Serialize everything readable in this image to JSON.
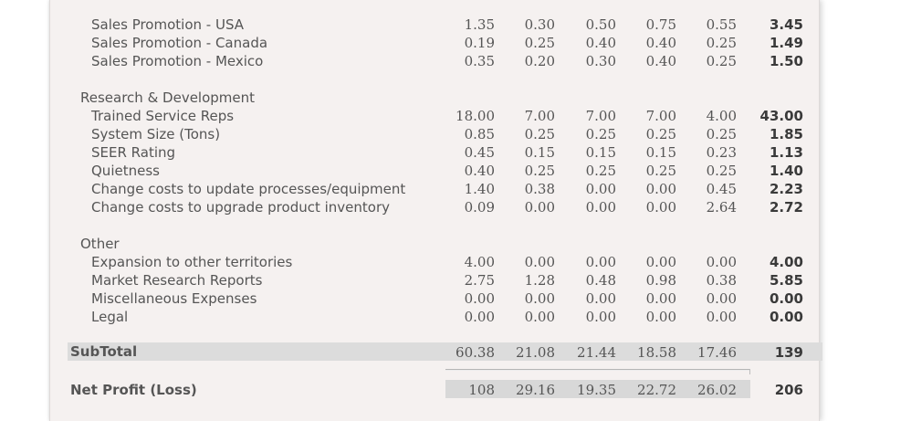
{
  "rows": [
    {
      "label": "Sales Promotion - USA",
      "v": [
        "1.35",
        "0.30",
        "0.50",
        "0.75",
        "0.55"
      ],
      "total": "3.45"
    },
    {
      "label": "Sales Promotion - Canada",
      "v": [
        "0.19",
        "0.25",
        "0.40",
        "0.40",
        "0.25"
      ],
      "total": "1.49"
    },
    {
      "label": "Sales Promotion - Mexico",
      "v": [
        "0.35",
        "0.20",
        "0.30",
        "0.40",
        "0.25"
      ],
      "total": "1.50"
    }
  ],
  "sections": {
    "rd": {
      "title": "Research & Development",
      "rows": [
        {
          "label": "Trained Service Reps",
          "v": [
            "18.00",
            "7.00",
            "7.00",
            "7.00",
            "4.00"
          ],
          "total": "43.00"
        },
        {
          "label": "System Size (Tons)",
          "v": [
            "0.85",
            "0.25",
            "0.25",
            "0.25",
            "0.25"
          ],
          "total": "1.85"
        },
        {
          "label": "SEER Rating",
          "v": [
            "0.45",
            "0.15",
            "0.15",
            "0.15",
            "0.23"
          ],
          "total": "1.13"
        },
        {
          "label": "Quietness",
          "v": [
            "0.40",
            "0.25",
            "0.25",
            "0.25",
            "0.25"
          ],
          "total": "1.40"
        },
        {
          "label": "Change costs to update processes/equipment",
          "v": [
            "1.40",
            "0.38",
            "0.00",
            "0.00",
            "0.45"
          ],
          "total": "2.23"
        },
        {
          "label": "Change costs to upgrade product inventory",
          "v": [
            "0.09",
            "0.00",
            "0.00",
            "0.00",
            "2.64"
          ],
          "total": "2.72"
        }
      ]
    },
    "other": {
      "title": "Other",
      "rows": [
        {
          "label": "Expansion to other territories",
          "v": [
            "4.00",
            "0.00",
            "0.00",
            "0.00",
            "0.00"
          ],
          "total": "4.00"
        },
        {
          "label": "Market Research Reports",
          "v": [
            "2.75",
            "1.28",
            "0.48",
            "0.98",
            "0.38"
          ],
          "total": "5.85"
        },
        {
          "label": "Miscellaneous Expenses",
          "v": [
            "0.00",
            "0.00",
            "0.00",
            "0.00",
            "0.00"
          ],
          "total": "0.00"
        },
        {
          "label": "Legal",
          "v": [
            "0.00",
            "0.00",
            "0.00",
            "0.00",
            "0.00"
          ],
          "total": "0.00"
        }
      ]
    }
  },
  "subtotal": {
    "label": "SubTotal",
    "v": [
      "60.38",
      "21.08",
      "21.44",
      "18.58",
      "17.46"
    ],
    "total": "139"
  },
  "net_profit": {
    "label": "Net Profit (Loss)",
    "v": [
      "108",
      "29.16",
      "19.35",
      "22.72",
      "26.02"
    ],
    "total": "206"
  }
}
